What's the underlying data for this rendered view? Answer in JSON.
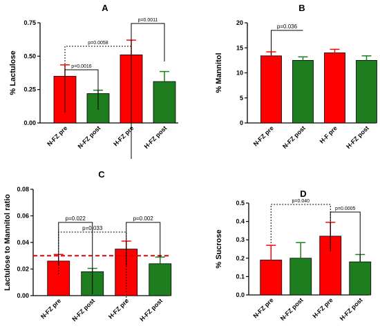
{
  "colors": {
    "red": "#ff0000",
    "green": "#1e7d1e",
    "refline": "#e00000"
  },
  "chart_data": [
    {
      "type": "bar",
      "panel_label": "A",
      "ylabel": "% Lactulose",
      "categories": [
        "N-FZ pre",
        "N-FZ post",
        "H-FZ  pre",
        "H-FZ post"
      ],
      "values": [
        0.35,
        0.22,
        0.51,
        0.31
      ],
      "errors": [
        0.085,
        0.025,
        0.11,
        0.075
      ],
      "bar_colors": [
        "red",
        "green",
        "red",
        "green"
      ],
      "ylim": [
        0,
        0.75
      ],
      "yticks": [
        "0.00",
        "0.25",
        "0.50",
        "0.75"
      ],
      "brackets": [
        {
          "from": 0,
          "to": 1,
          "label": "p=0.0016",
          "style": "solid"
        },
        {
          "from": 0,
          "to": 2,
          "label": "p=0.0058",
          "style": "dotted"
        },
        {
          "from": 2,
          "to": 3,
          "label": "p=0.0011",
          "style": "solid"
        }
      ]
    },
    {
      "type": "bar",
      "panel_label": "B",
      "ylabel": "% Mannitol",
      "categories": [
        "N-FZ pre",
        "N-FZ post",
        "H-F pre",
        "H-FZ post"
      ],
      "values": [
        13.4,
        12.5,
        14.0,
        12.5
      ],
      "errors": [
        0.8,
        0.7,
        0.7,
        0.9
      ],
      "bar_colors": [
        "red",
        "green",
        "red",
        "green"
      ],
      "ylim": [
        0,
        20
      ],
      "yticks": [
        "0",
        "5",
        "10",
        "15",
        "20"
      ],
      "brackets": [
        {
          "from": 0,
          "to": 1,
          "label": "p=0.036",
          "style": "solid"
        }
      ]
    },
    {
      "type": "bar",
      "panel_label": "C",
      "ylabel": "Lactulose to Mannitol ratio",
      "categories": [
        "N-FZ pre",
        "N-FZ post",
        "H-FZ  pre",
        "H-FZ  post"
      ],
      "values": [
        0.026,
        0.018,
        0.035,
        0.024
      ],
      "errors": [
        0.005,
        0.0025,
        0.006,
        0.005
      ],
      "bar_colors": [
        "red",
        "green",
        "red",
        "green"
      ],
      "ylim": [
        0,
        0.08
      ],
      "yticks": [
        "0.00",
        "0.02",
        "0.04",
        "0.06",
        "0.08"
      ],
      "reference_line": 0.03,
      "brackets": [
        {
          "from": 0,
          "to": 1,
          "label": "p=0.022",
          "style": "solid"
        },
        {
          "from": 0,
          "to": 2,
          "label": "p=0.033",
          "style": "dotted"
        },
        {
          "from": 2,
          "to": 3,
          "label": "p=0.002",
          "style": "solid"
        }
      ]
    },
    {
      "type": "bar",
      "panel_label": "D",
      "ylabel": "% Sucrose",
      "categories": [
        "N-FZ pre",
        "N-FZ post",
        "H-FZ pre",
        "H-FZ post"
      ],
      "values": [
        0.19,
        0.2,
        0.32,
        0.18
      ],
      "errors": [
        0.08,
        0.085,
        0.075,
        0.04
      ],
      "bar_colors": [
        "red",
        "green",
        "red",
        "green"
      ],
      "ylim": [
        0,
        0.5
      ],
      "yticks": [
        "0.0",
        "0.1",
        "0.2",
        "0.3",
        "0.4",
        "0.5"
      ],
      "brackets": [
        {
          "from": 0,
          "to": 2,
          "label": "p=0.040",
          "style": "dotted"
        },
        {
          "from": 2,
          "to": 3,
          "label": "p=0.0005",
          "style": "solid"
        }
      ]
    }
  ]
}
